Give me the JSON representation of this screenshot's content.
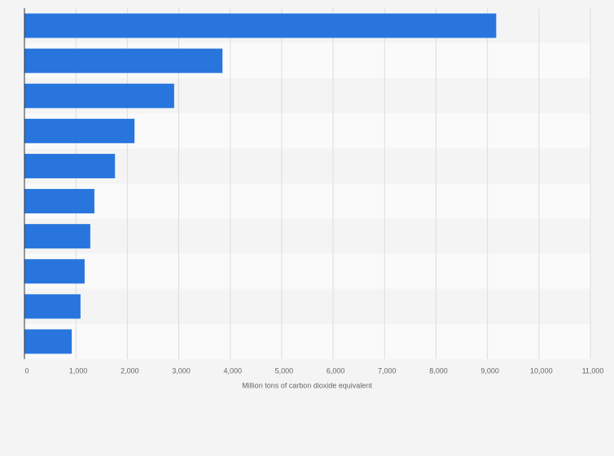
{
  "chart_data": {
    "type": "bar",
    "orientation": "horizontal",
    "values": [
      9170,
      3850,
      2910,
      2140,
      1760,
      1360,
      1280,
      1170,
      1090,
      920
    ],
    "color": "#2876dd",
    "xlabel": "Million tons of carbon dioxide equivalent",
    "xlim": [
      0,
      11000
    ],
    "xticks": [
      0,
      {
        "value": 1000,
        "label": "1,000"
      },
      {
        "value": 2000,
        "label": "2,000"
      },
      {
        "value": 3000,
        "label": "3,000"
      },
      {
        "value": 4000,
        "label": "4,000"
      },
      {
        "value": 5000,
        "label": "5,000"
      },
      {
        "value": 6000,
        "label": "6,000"
      },
      {
        "value": 7000,
        "label": "7,000"
      },
      {
        "value": 8000,
        "label": "8,000"
      },
      {
        "value": 9000,
        "label": "9,000"
      },
      {
        "value": 10000,
        "label": "10,000"
      },
      {
        "value": 11000,
        "label": "11,000"
      }
    ],
    "grid": true
  }
}
